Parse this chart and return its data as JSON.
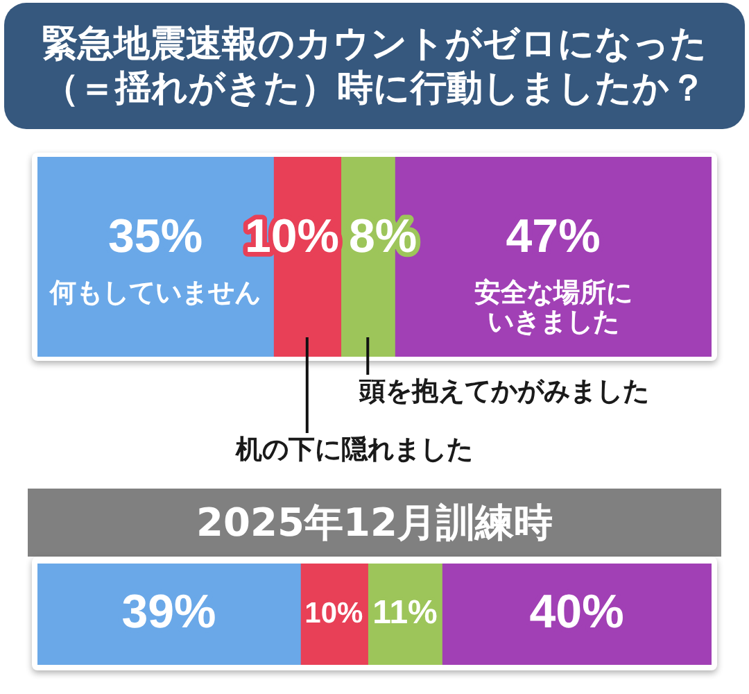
{
  "chart_data": [
    {
      "type": "bar",
      "orientation": "horizontal",
      "stacked": true,
      "title": "緊急地震速報のカウントがゼロになった（＝揺れがきた）時に行動しましたか？",
      "categories": [
        null
      ],
      "xlim": [
        0,
        100
      ],
      "tick_labels": false,
      "series": [
        {
          "name": "何もしていません",
          "color": "#6aa8e8",
          "values": [
            35
          ],
          "value_labels": [
            "35%"
          ]
        },
        {
          "name": "机の下に隠れました",
          "color": "#e84057",
          "values": [
            10
          ],
          "value_labels": [
            "10%"
          ]
        },
        {
          "name": "頭を抱えてかがみました",
          "color": "#9dc55a",
          "values": [
            8
          ],
          "value_labels": [
            "8%"
          ]
        },
        {
          "name": "安全な場所にいきました",
          "color": "#a140b5",
          "values": [
            47
          ],
          "value_labels": [
            "47%"
          ]
        }
      ]
    },
    {
      "type": "bar",
      "orientation": "horizontal",
      "stacked": true,
      "title": "2025年12月訓練時",
      "categories": [
        null
      ],
      "xlim": [
        0,
        100
      ],
      "tick_labels": false,
      "series": [
        {
          "color": "#6aa8e8",
          "values": [
            39
          ],
          "value_labels": [
            "39%"
          ]
        },
        {
          "color": "#e84057",
          "values": [
            10
          ],
          "value_labels": [
            "10%"
          ]
        },
        {
          "color": "#9dc55a",
          "values": [
            11
          ],
          "value_labels": [
            "11%"
          ]
        },
        {
          "color": "#a140b5",
          "values": [
            40
          ],
          "value_labels": [
            "40%"
          ]
        }
      ]
    }
  ]
}
